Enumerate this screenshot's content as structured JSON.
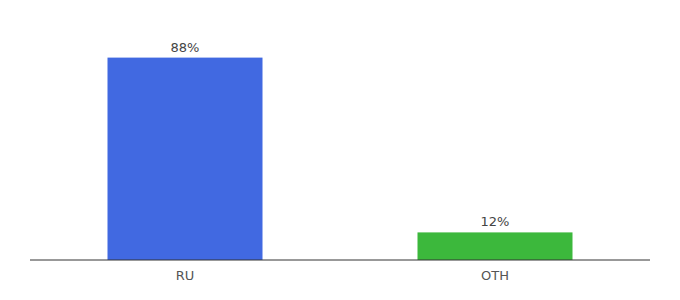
{
  "chart_data": {
    "type": "bar",
    "categories": [
      "RU",
      "OTH"
    ],
    "values": [
      88,
      12
    ],
    "value_labels": [
      "88%",
      "12%"
    ],
    "colors": [
      "#4169e1",
      "#3cb83c"
    ],
    "ylim": [
      0,
      100
    ],
    "grid": false,
    "data_labels": true,
    "tick_labels": "x"
  }
}
